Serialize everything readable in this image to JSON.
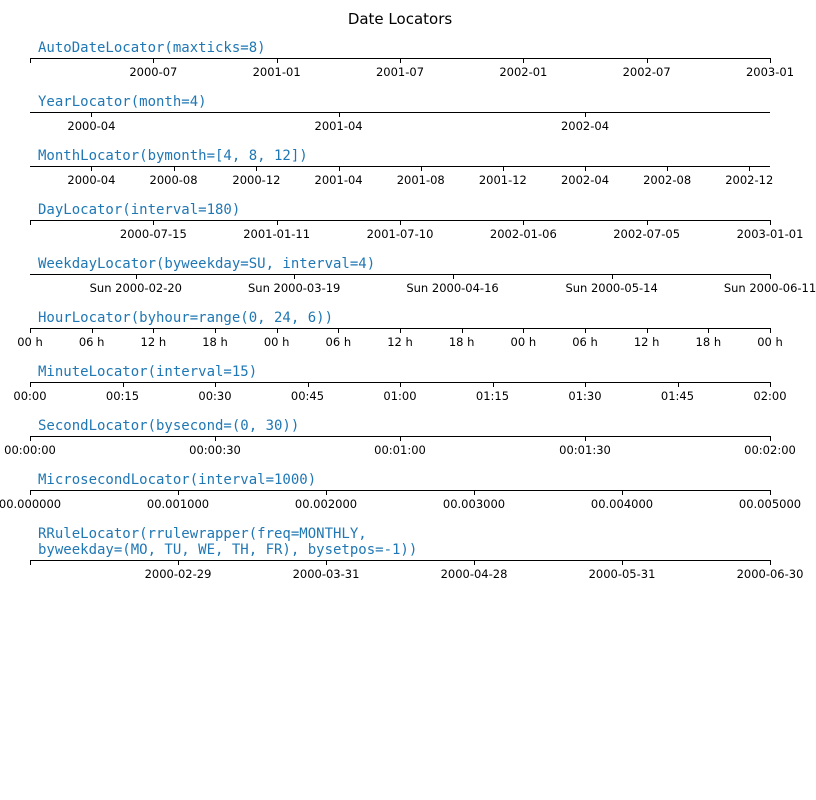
{
  "title": "Date Locators",
  "title_fontsize": 15,
  "title_color": "#000000",
  "label_color": "#1f77b4",
  "label_fontsize": 14,
  "label_fontfamily": "monospace",
  "tick_fontsize": 11.5,
  "tick_color": "#000000",
  "axis_color": "#000000",
  "background_color": "#ffffff",
  "panels": [
    {
      "label": "AutoDateLocator(maxticks=8)",
      "ticks": [
        {
          "pos": 0.0,
          "label": ""
        },
        {
          "pos": 0.1667,
          "label": "2000-07"
        },
        {
          "pos": 0.3333,
          "label": "2001-01"
        },
        {
          "pos": 0.5,
          "label": "2001-07"
        },
        {
          "pos": 0.6667,
          "label": "2002-01"
        },
        {
          "pos": 0.8333,
          "label": "2002-07"
        },
        {
          "pos": 1.0,
          "label": "2003-01"
        }
      ]
    },
    {
      "label": "YearLocator(month=4)",
      "ticks": [
        {
          "pos": 0.083,
          "label": "2000-04"
        },
        {
          "pos": 0.417,
          "label": "2001-04"
        },
        {
          "pos": 0.75,
          "label": "2002-04"
        }
      ]
    },
    {
      "label": "MonthLocator(bymonth=[4, 8, 12])",
      "ticks": [
        {
          "pos": 0.083,
          "label": "2000-04"
        },
        {
          "pos": 0.194,
          "label": "2000-08"
        },
        {
          "pos": 0.306,
          "label": "2000-12"
        },
        {
          "pos": 0.417,
          "label": "2001-04"
        },
        {
          "pos": 0.528,
          "label": "2001-08"
        },
        {
          "pos": 0.639,
          "label": "2001-12"
        },
        {
          "pos": 0.75,
          "label": "2002-04"
        },
        {
          "pos": 0.861,
          "label": "2002-08"
        },
        {
          "pos": 0.972,
          "label": "2002-12"
        }
      ]
    },
    {
      "label": "DayLocator(interval=180)",
      "ticks": [
        {
          "pos": 0.0,
          "label": ""
        },
        {
          "pos": 0.1667,
          "label": "2000-07-15"
        },
        {
          "pos": 0.3333,
          "label": "2001-01-11"
        },
        {
          "pos": 0.5,
          "label": "2001-07-10"
        },
        {
          "pos": 0.6667,
          "label": "2002-01-06"
        },
        {
          "pos": 0.8333,
          "label": "2002-07-05"
        },
        {
          "pos": 1.0,
          "label": "2003-01-01"
        }
      ]
    },
    {
      "label": "WeekdayLocator(byweekday=SU, interval=4)",
      "ticks": [
        {
          "pos": 0.143,
          "label": "Sun 2000-02-20"
        },
        {
          "pos": 0.357,
          "label": "Sun 2000-03-19"
        },
        {
          "pos": 0.571,
          "label": "Sun 2000-04-16"
        },
        {
          "pos": 0.786,
          "label": "Sun 2000-05-14"
        },
        {
          "pos": 1.0,
          "label": "Sun 2000-06-11"
        }
      ]
    },
    {
      "label": "HourLocator(byhour=range(0, 24, 6))",
      "ticks": [
        {
          "pos": 0.0,
          "label": "00 h"
        },
        {
          "pos": 0.0833,
          "label": "06 h"
        },
        {
          "pos": 0.1667,
          "label": "12 h"
        },
        {
          "pos": 0.25,
          "label": "18 h"
        },
        {
          "pos": 0.3333,
          "label": "00 h"
        },
        {
          "pos": 0.4167,
          "label": "06 h"
        },
        {
          "pos": 0.5,
          "label": "12 h"
        },
        {
          "pos": 0.5833,
          "label": "18 h"
        },
        {
          "pos": 0.6667,
          "label": "00 h"
        },
        {
          "pos": 0.75,
          "label": "06 h"
        },
        {
          "pos": 0.8333,
          "label": "12 h"
        },
        {
          "pos": 0.9167,
          "label": "18 h"
        },
        {
          "pos": 1.0,
          "label": "00 h"
        }
      ]
    },
    {
      "label": "MinuteLocator(interval=15)",
      "ticks": [
        {
          "pos": 0.0,
          "label": "00:00"
        },
        {
          "pos": 0.125,
          "label": "00:15"
        },
        {
          "pos": 0.25,
          "label": "00:30"
        },
        {
          "pos": 0.375,
          "label": "00:45"
        },
        {
          "pos": 0.5,
          "label": "01:00"
        },
        {
          "pos": 0.625,
          "label": "01:15"
        },
        {
          "pos": 0.75,
          "label": "01:30"
        },
        {
          "pos": 0.875,
          "label": "01:45"
        },
        {
          "pos": 1.0,
          "label": "02:00"
        }
      ]
    },
    {
      "label": "SecondLocator(bysecond=(0, 30))",
      "ticks": [
        {
          "pos": 0.0,
          "label": "00:00:00"
        },
        {
          "pos": 0.25,
          "label": "00:00:30"
        },
        {
          "pos": 0.5,
          "label": "00:01:00"
        },
        {
          "pos": 0.75,
          "label": "00:01:30"
        },
        {
          "pos": 1.0,
          "label": "00:02:00"
        }
      ]
    },
    {
      "label": "MicrosecondLocator(interval=1000)",
      "ticks": [
        {
          "pos": 0.0,
          "label": "00.000000"
        },
        {
          "pos": 0.2,
          "label": "00.001000"
        },
        {
          "pos": 0.4,
          "label": "00.002000"
        },
        {
          "pos": 0.6,
          "label": "00.003000"
        },
        {
          "pos": 0.8,
          "label": "00.004000"
        },
        {
          "pos": 1.0,
          "label": "00.005000"
        }
      ]
    },
    {
      "label": "RRuleLocator(rrulewrapper(freq=MONTHLY,\nbyweekday=(MO, TU, WE, TH, FR), bysetpos=-1))",
      "ticks": [
        {
          "pos": 0.0,
          "label": ""
        },
        {
          "pos": 0.2,
          "label": "2000-02-29"
        },
        {
          "pos": 0.4,
          "label": "2000-03-31"
        },
        {
          "pos": 0.6,
          "label": "2000-04-28"
        },
        {
          "pos": 0.8,
          "label": "2000-05-31"
        },
        {
          "pos": 1.0,
          "label": "2000-06-30"
        }
      ]
    }
  ]
}
